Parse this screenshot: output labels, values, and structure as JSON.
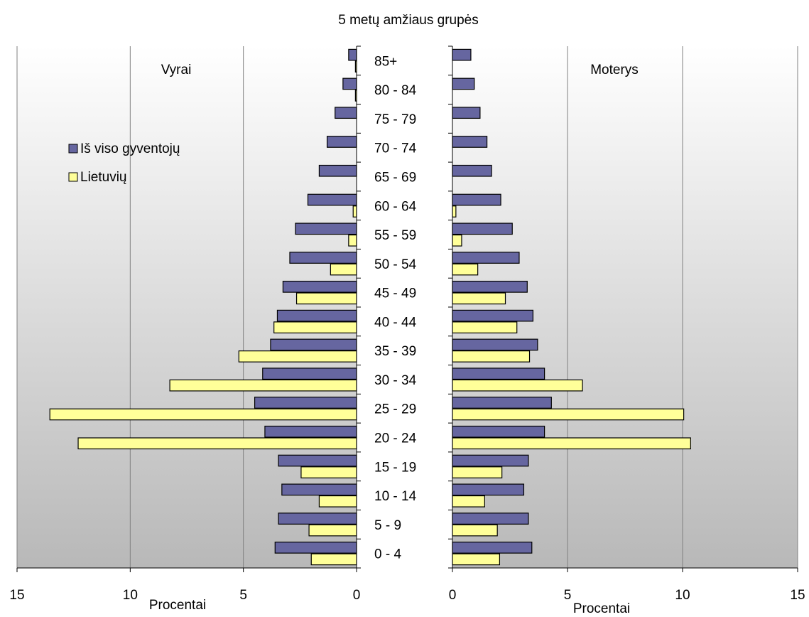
{
  "chart_data": {
    "type": "bar",
    "orientation": "horizontal",
    "layout": "population pyramid",
    "title": "5 metų amžiaus grupės",
    "categories": [
      "85+",
      "80 - 84",
      "75 - 79",
      "70 - 74",
      "65 - 69",
      "60 - 64",
      "55 - 59",
      "50 - 54",
      "45 - 49",
      "40 - 44",
      "35 - 39",
      "30 - 34",
      "25 - 29",
      "20 - 24",
      "15 - 19",
      "10 - 14",
      "5 - 9",
      "0 - 4"
    ],
    "panels": [
      {
        "name": "Vyrai",
        "xlabel": "Procentai",
        "xlim": [
          15,
          0
        ],
        "xticks": [
          "15",
          "10",
          "5",
          "0"
        ],
        "series": [
          {
            "name": "Iš viso gyventojų",
            "color": "#6666a0",
            "values": [
              0.35,
              0.6,
              0.95,
              1.3,
              1.65,
              2.15,
              2.7,
              2.95,
              3.25,
              3.5,
              3.8,
              4.15,
              4.5,
              4.05,
              3.45,
              3.3,
              3.45,
              3.6
            ]
          },
          {
            "name": "Lietuvių",
            "color": "#ffff99",
            "values": [
              0.05,
              0.05,
              0,
              0,
              0,
              0.15,
              0.35,
              1.15,
              2.65,
              3.65,
              5.2,
              8.25,
              13.55,
              12.3,
              2.45,
              1.65,
              2.1,
              2.0
            ]
          }
        ]
      },
      {
        "name": "Moterys",
        "xlabel": "Procentai",
        "xlim": [
          0,
          15
        ],
        "xticks": [
          "0",
          "5",
          "10",
          "15"
        ],
        "series": [
          {
            "name": "Iš viso gyventojų",
            "color": "#6666a0",
            "values": [
              0.8,
              0.95,
              1.2,
              1.5,
              1.7,
              2.1,
              2.6,
              2.9,
              3.25,
              3.5,
              3.7,
              4.0,
              4.3,
              4.0,
              3.3,
              3.1,
              3.3,
              3.45
            ]
          },
          {
            "name": "Lietuvių",
            "color": "#ffff99",
            "values": [
              0,
              0,
              0,
              0,
              0,
              0.15,
              0.4,
              1.1,
              2.3,
              2.8,
              3.35,
              5.65,
              10.05,
              10.35,
              2.15,
              1.4,
              1.95,
              2.05
            ]
          }
        ]
      }
    ],
    "legend": {
      "placement": "left panel, upper-left",
      "entries": [
        "Iš viso gyventojų",
        "Lietuvių"
      ]
    },
    "grid": "vertical gridlines at each tick",
    "background": "gradient from white at top to gray at bottom"
  }
}
